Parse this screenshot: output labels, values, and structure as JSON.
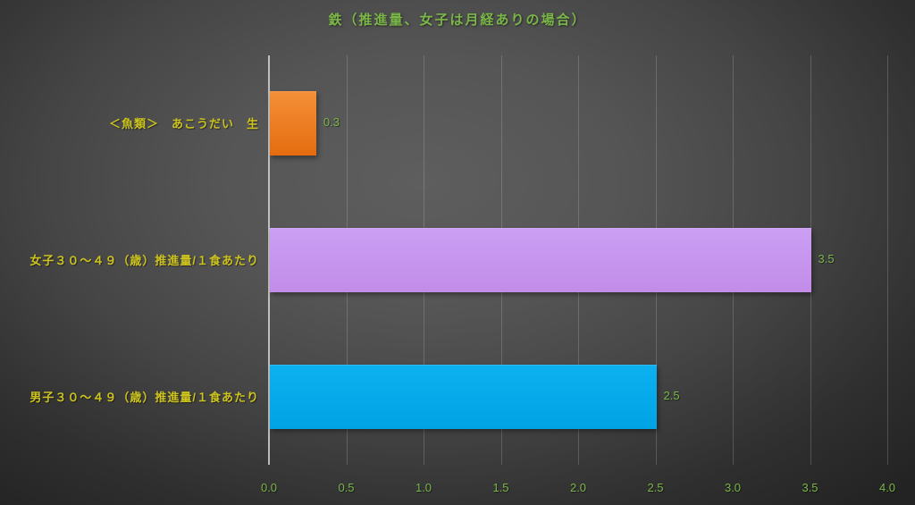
{
  "chart_data": {
    "type": "bar",
    "orientation": "horizontal",
    "title": "鉄（推進量、女子は月経ありの場合）",
    "categories": [
      "＜魚類＞　あこうだい　生",
      "女子３０～４９（歳）推進量/１食あたり",
      "男子３０～４９（歳）推進量/１食あたり"
    ],
    "values": [
      0.3,
      3.5,
      2.5
    ],
    "data_labels": [
      "0.3",
      "3.5",
      "2.5"
    ],
    "bar_colors": [
      "#ed7d23",
      "#c897ee",
      "#00aeef"
    ],
    "bar_gradients": [
      [
        "#f49038",
        "#e56c10"
      ],
      [
        "#cb9ff4",
        "#c28ce8"
      ],
      [
        "#0db1f0",
        "#00a3e3"
      ]
    ],
    "xlabel": "",
    "ylabel": "",
    "xlim": [
      0,
      4
    ],
    "xticks": [
      0,
      0.5,
      1,
      1.5,
      2,
      2.5,
      3,
      3.5,
      4
    ],
    "xtick_labels": [
      "0.0",
      "0.5",
      "1.0",
      "1.5",
      "2.0",
      "2.5",
      "3.0",
      "3.5",
      "4.0"
    ],
    "grid": true,
    "legend": "none"
  },
  "styles": {
    "title_color": "#7ab648",
    "category_label_color": "#cdc31f",
    "tick_label_color": "#7ab648",
    "value_label_color": "#7ab648",
    "gridline_color": "rgba(215,215,215,0.22)",
    "axis_line_color": "rgba(210,210,210,0.85)"
  }
}
